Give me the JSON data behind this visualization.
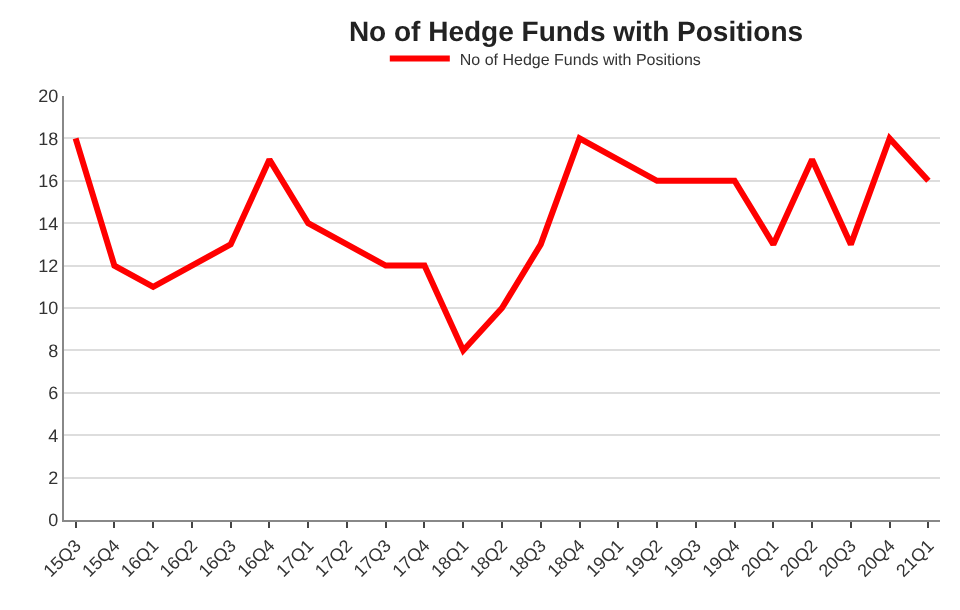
{
  "chart_data": {
    "type": "line",
    "title": "No of Hedge Funds with Positions",
    "categories": [
      "15Q3",
      "15Q4",
      "16Q1",
      "16Q2",
      "16Q3",
      "16Q4",
      "17Q1",
      "17Q2",
      "17Q3",
      "17Q4",
      "18Q1",
      "18Q2",
      "18Q3",
      "18Q4",
      "19Q1",
      "19Q2",
      "19Q3",
      "19Q4",
      "20Q1",
      "20Q2",
      "20Q3",
      "20Q4",
      "21Q1"
    ],
    "series": [
      {
        "name": "No of Hedge Funds with Positions",
        "color": "#ff0000",
        "values": [
          18,
          12,
          11,
          12,
          13,
          17,
          14,
          13,
          12,
          12,
          8,
          10,
          13,
          18,
          17,
          16,
          16,
          16,
          13,
          17,
          13,
          18,
          16
        ]
      }
    ],
    "ylim": [
      0,
      20
    ],
    "yticks": [
      0,
      2,
      4,
      6,
      8,
      10,
      12,
      14,
      16,
      18,
      20
    ],
    "grid": "y",
    "legend": "top",
    "marker": "none",
    "line_style": "solid"
  }
}
